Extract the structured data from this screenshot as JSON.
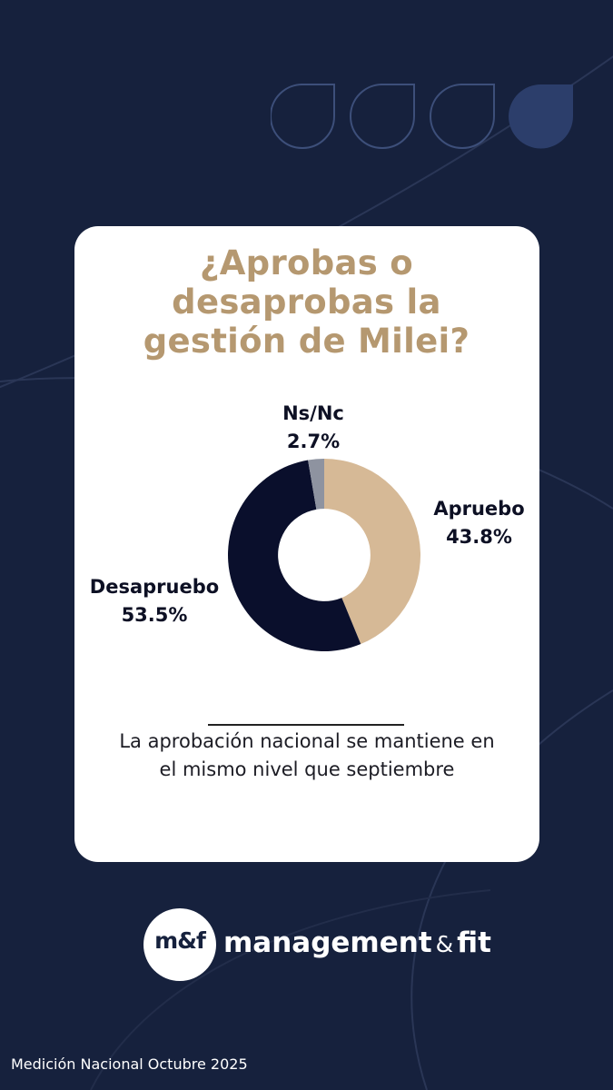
{
  "chart_data": {
    "type": "pie",
    "title": "¿Aprobas o desaprobas la gestión de Milei?",
    "title_lines": [
      "¿Aprobas o",
      "desaprobas la",
      "gestión de Milei?"
    ],
    "slices": [
      {
        "label": "Apruebo",
        "value": 43.8,
        "value_label": "43.8%",
        "color": "#d6b996"
      },
      {
        "label": "Desapruebo",
        "value": 53.5,
        "value_label": "53.5%",
        "color": "#0a0f2c"
      },
      {
        "label": "Ns/Nc",
        "value": 2.7,
        "value_label": "2.7%",
        "color": "#8e93a0"
      }
    ],
    "hole_ratio": 0.48
  },
  "note": {
    "lines": [
      "La aprobación nacional se mantiene en",
      "el mismo nivel que septiembre"
    ]
  },
  "brand": {
    "logo_mark": "m&f",
    "name_part1": "management",
    "ampersand": "&",
    "name_part2": "fit"
  },
  "footer": {
    "text": "Medición Nacional Octubre 2025"
  },
  "colors": {
    "background": "#16213d",
    "title": "#b59870",
    "card": "#ffffff",
    "accent_drop": "#2c3e6b"
  }
}
